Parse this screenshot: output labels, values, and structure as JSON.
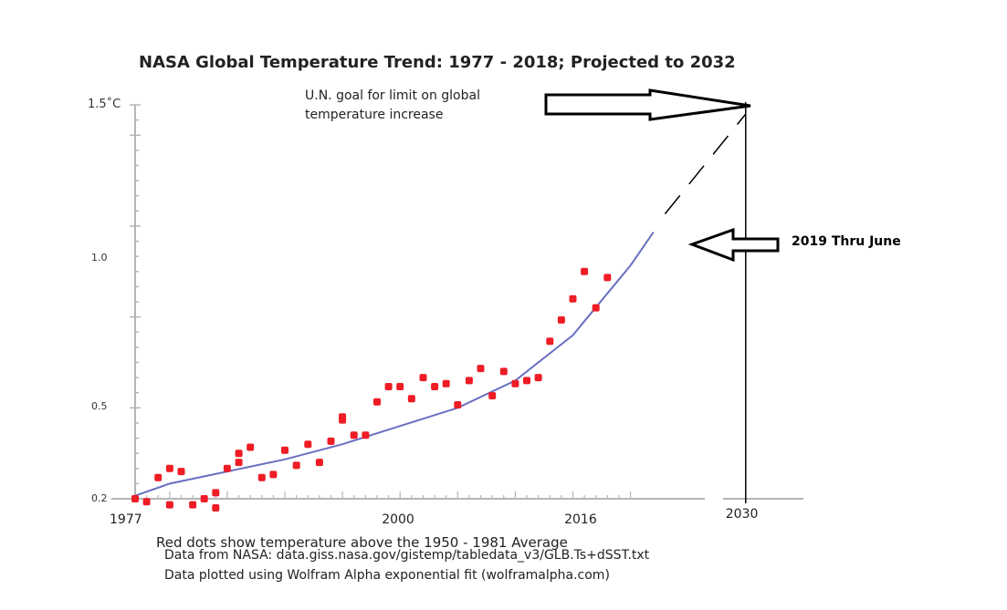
{
  "colors": {
    "fit_line": "#6a6fc2",
    "dots": "#ee1c25",
    "axis": "#b5b5b5",
    "arrow": "#000000"
  },
  "chart_data": {
    "type": "scatter",
    "title": "NASA Global Temperature Trend:  1977 - 2018; Projected to 2032",
    "x_tick_labels": [
      "1977",
      "2000",
      "2016",
      "2030"
    ],
    "y_tick_labels": [
      "0.2",
      "0.5",
      "1.0",
      "1.5˚C"
    ],
    "xlim": [
      1977,
      2032
    ],
    "ylim": [
      0.2,
      1.5
    ],
    "series": [
      {
        "name": "Annual temperature above the 1950 - 1981 Average",
        "kind": "points",
        "x": [
          1977,
          1978,
          1979,
          1980,
          1980,
          1981,
          1982,
          1983,
          1984,
          1984,
          1985,
          1986,
          1986,
          1987,
          1988,
          1989,
          1990,
          1991,
          1992,
          1993,
          1994,
          1995,
          1995,
          1996,
          1997,
          1998,
          1999,
          2000,
          2001,
          2002,
          2003,
          2004,
          2005,
          2006,
          2007,
          2008,
          2009,
          2010,
          2011,
          2012,
          2013,
          2014,
          2015,
          2016,
          2017,
          2018
        ],
        "y": [
          0.2,
          0.19,
          0.27,
          0.3,
          0.18,
          0.29,
          0.18,
          0.2,
          0.17,
          0.22,
          0.3,
          0.35,
          0.32,
          0.37,
          0.27,
          0.28,
          0.36,
          0.31,
          0.38,
          0.32,
          0.39,
          0.47,
          0.46,
          0.41,
          0.41,
          0.52,
          0.57,
          0.57,
          0.53,
          0.6,
          0.57,
          0.58,
          0.51,
          0.59,
          0.63,
          0.54,
          0.62,
          0.58,
          0.59,
          0.6,
          0.72,
          0.79,
          0.86,
          0.95,
          0.83,
          0.93
        ]
      },
      {
        "name": "Wolfram Alpha exponential fit",
        "kind": "line",
        "x": [
          1977,
          1980,
          1985,
          1990,
          1995,
          2000,
          2005,
          2010,
          2015,
          2020,
          2022
        ],
        "y": [
          0.21,
          0.25,
          0.29,
          0.33,
          0.38,
          0.44,
          0.5,
          0.59,
          0.74,
          0.97,
          1.08
        ]
      },
      {
        "name": "Projection to 2032",
        "kind": "dashed-line",
        "x": [
          2023,
          2030
        ],
        "y": [
          1.14,
          1.47
        ]
      }
    ],
    "annotations": [
      {
        "text": "2019 Thru June",
        "x": 2019,
        "y": 0.99
      }
    ]
  },
  "annotations": {
    "goal_line1": "U.N. goal for limit on global",
    "goal_line2": "temperature increase",
    "recent": "2019 Thru June"
  },
  "footer": {
    "line1": "Red dots show temperature above the 1950 - 1981 Average",
    "line2": "Data from NASA:  data.giss.nasa.gov/gistemp/tabledata_v3/GLB.Ts+dSST.txt",
    "line3": "Data plotted using Wolfram Alpha exponential fit (wolframalpha.com)"
  }
}
